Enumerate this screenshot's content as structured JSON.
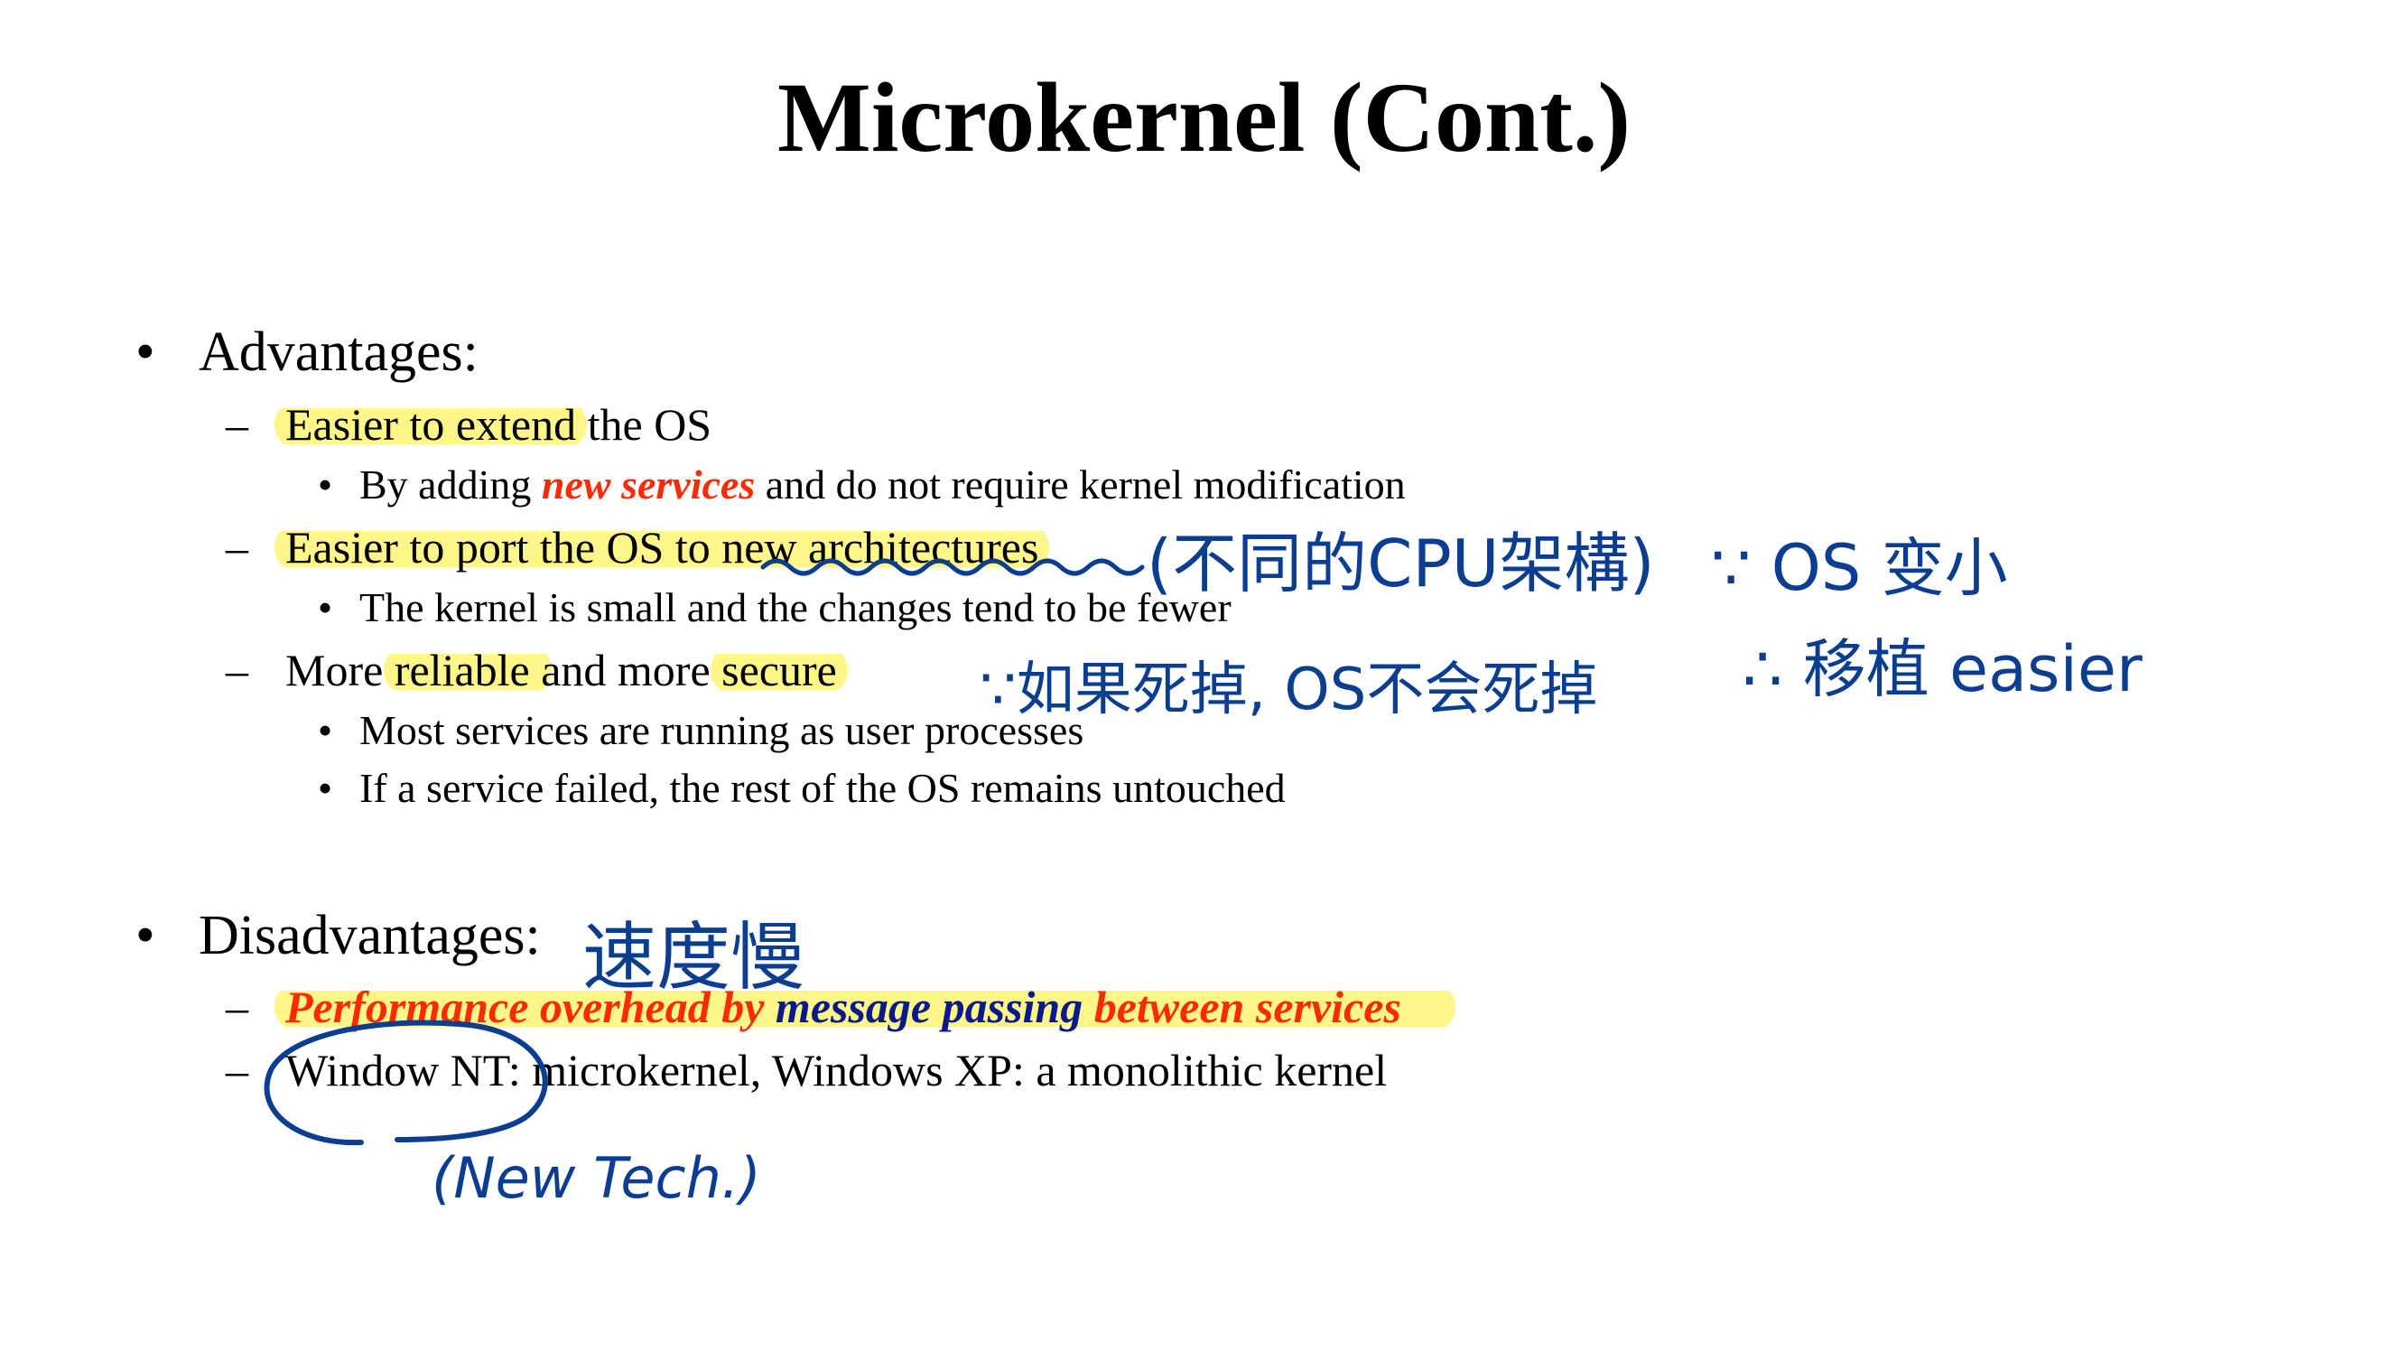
{
  "title": "Microkernel (Cont.)",
  "advantages": {
    "heading": "Advantages:",
    "items": [
      {
        "highlighted": "Easier to extend",
        "rest": " the OS",
        "sub": [
          {
            "before": "By adding ",
            "emph": "new services",
            "after": " and do not require kernel modification"
          }
        ]
      },
      {
        "highlighted": "Easier to port the OS to new architectures",
        "sub": [
          {
            "text": "The kernel is small and the changes tend to be fewer"
          }
        ]
      },
      {
        "before": "More ",
        "highlight1": "reliable ",
        "middle": "and more ",
        "highlight2": "secure",
        "sub": [
          {
            "text": "Most services are running as user processes"
          },
          {
            "text": "If a service failed, the rest of the OS remains untouched"
          }
        ]
      }
    ]
  },
  "disadvantages": {
    "heading": "Disadvantages:",
    "items": [
      {
        "part1": "Performance overhead by ",
        "part2": "message passing",
        "part3": " between services"
      },
      {
        "text": "Window NT: microkernel, Windows XP: a monolithic kernel"
      }
    ]
  },
  "handwriting": {
    "note_cpu": "(不同的CPU架構)",
    "note_small": "∵ OS 变小",
    "note_port": "∴ 移植 easier",
    "note_crash": "∵如果死掉, OS不会死掉",
    "note_slow": "速度慢",
    "note_nt": "(New Tech.)"
  },
  "colors": {
    "highlight": "#fff68a",
    "ink": "#0b3d91",
    "emphasis_red": "#ff1a1a",
    "emphasis_navy": "#0a1a8c"
  }
}
